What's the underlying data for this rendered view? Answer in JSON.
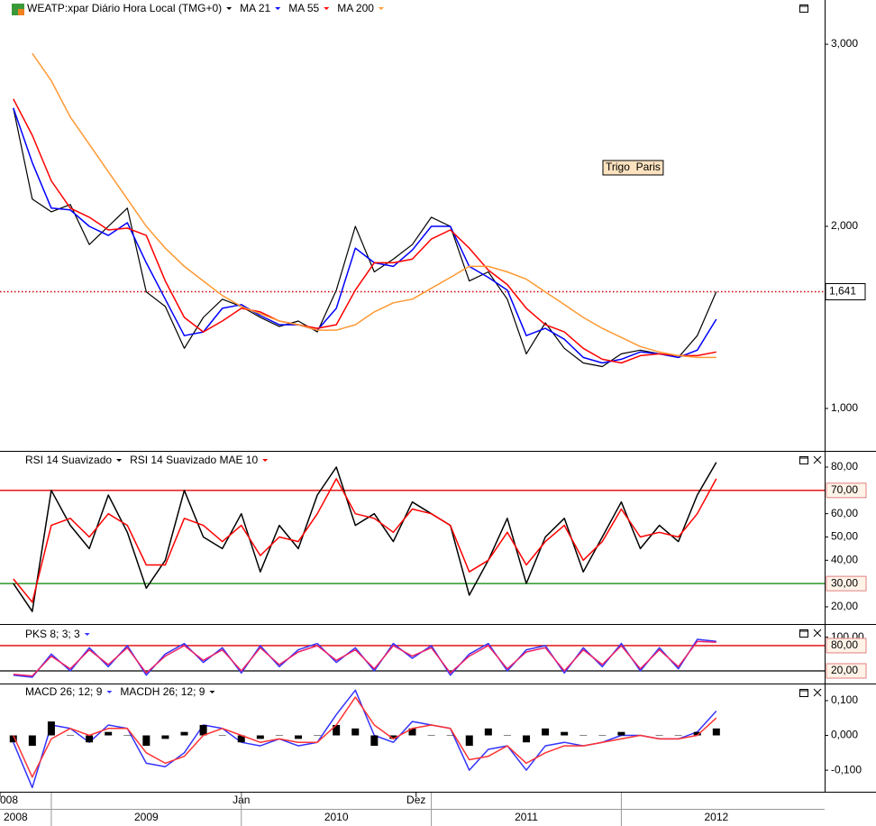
{
  "chart_data": [
    {
      "type": "line",
      "x": [
        2008.8,
        2008.9,
        2009.0,
        2009.1,
        2009.2,
        2009.3,
        2009.4,
        2009.5,
        2009.6,
        2009.7,
        2009.8,
        2009.9,
        2010.0,
        2010.1,
        2010.2,
        2010.3,
        2010.4,
        2010.5,
        2010.6,
        2010.7,
        2010.8,
        2010.9,
        2011.0,
        2011.1,
        2011.2,
        2011.3,
        2011.4,
        2011.5,
        2011.6,
        2011.7,
        2011.8,
        2011.9,
        2012.0,
        2012.1,
        2012.2,
        2012.3,
        2012.4,
        2012.5
      ],
      "xlim": [
        2008.73,
        2013.07
      ],
      "ylim": [
        767,
        3243
      ],
      "yticks": [
        {
          "value": 1000,
          "label": "1,000"
        },
        {
          "value": 2000,
          "label": "2,000"
        },
        {
          "value": 3000,
          "label": "3,000"
        }
      ],
      "series": [
        {
          "name": "WEATP:xpar Diário Hora Local (TMG+0)",
          "color": "#000000",
          "values": [
            2650,
            2150,
            2080,
            2120,
            1900,
            2000,
            2100,
            1640,
            1560,
            1330,
            1500,
            1600,
            1560,
            1500,
            1450,
            1480,
            1420,
            1650,
            2000,
            1750,
            1820,
            1900,
            2050,
            2000,
            1700,
            1750,
            1600,
            1300,
            1470,
            1330,
            1250,
            1230,
            1300,
            1320,
            1300,
            1280,
            1400,
            1641
          ]
        },
        {
          "name": "MA 21",
          "color": "#0000ff",
          "values": [
            2650,
            2350,
            2100,
            2090,
            2000,
            1950,
            2020,
            1800,
            1600,
            1400,
            1420,
            1550,
            1570,
            1510,
            1460,
            1460,
            1430,
            1550,
            1880,
            1800,
            1780,
            1870,
            2000,
            2000,
            1780,
            1720,
            1650,
            1400,
            1440,
            1380,
            1280,
            1250,
            1270,
            1310,
            1300,
            1280,
            1320,
            1490
          ]
        },
        {
          "name": "MA 55",
          "color": "#ff0000",
          "values": [
            2700,
            2500,
            2250,
            2100,
            2050,
            1980,
            1990,
            1950,
            1700,
            1500,
            1420,
            1480,
            1550,
            1530,
            1480,
            1460,
            1440,
            1460,
            1650,
            1800,
            1800,
            1820,
            1930,
            1980,
            1880,
            1760,
            1680,
            1550,
            1460,
            1420,
            1330,
            1270,
            1250,
            1290,
            1300,
            1290,
            1290,
            1310
          ]
        },
        {
          "name": "MA 200",
          "color": "#ff9933",
          "values": [
            null,
            2950,
            2800,
            2600,
            2450,
            2300,
            2150,
            2000,
            1880,
            1780,
            1700,
            1620,
            1560,
            1520,
            1480,
            1460,
            1430,
            1430,
            1460,
            1530,
            1580,
            1600,
            1660,
            1720,
            1780,
            1780,
            1750,
            1710,
            1640,
            1570,
            1500,
            1440,
            1390,
            1340,
            1310,
            1290,
            1280,
            1280
          ]
        }
      ],
      "annotation": "Trigo  Paris",
      "last_price": {
        "value": 1641,
        "label": "1,641"
      }
    },
    {
      "type": "line",
      "ylim": [
        13.4,
        86.2
      ],
      "yticks": [
        {
          "value": 80,
          "label": "80,00"
        },
        {
          "value": 60,
          "label": "60,00"
        },
        {
          "value": 50,
          "label": "50,00"
        },
        {
          "value": 40,
          "label": "40,00"
        },
        {
          "value": 20,
          "label": "20,00"
        }
      ],
      "hlines": [
        {
          "value": 70,
          "label": "70,00",
          "color": "#e00000"
        },
        {
          "value": 30,
          "label": "30,00",
          "color": "#008000"
        }
      ],
      "series": [
        {
          "name": "RSI 14 Suavizado",
          "color": "#000000",
          "values": [
            30,
            18,
            70,
            55,
            45,
            68,
            52,
            28,
            40,
            70,
            50,
            45,
            60,
            35,
            55,
            45,
            68,
            80,
            55,
            60,
            48,
            65,
            60,
            55,
            25,
            40,
            58,
            30,
            50,
            58,
            35,
            50,
            65,
            45,
            55,
            48,
            68,
            82
          ]
        },
        {
          "name": "RSI 14 Suavizado MAE 10",
          "color": "#ff0000",
          "values": [
            32,
            22,
            55,
            58,
            50,
            60,
            55,
            38,
            38,
            58,
            55,
            48,
            55,
            42,
            50,
            48,
            60,
            75,
            60,
            58,
            52,
            62,
            60,
            55,
            35,
            40,
            52,
            38,
            48,
            55,
            40,
            48,
            62,
            50,
            52,
            50,
            60,
            75
          ]
        }
      ]
    },
    {
      "type": "line",
      "ylim": [
        -5.7,
        127
      ],
      "yticks": [
        {
          "value": 100,
          "label": "100,00"
        }
      ],
      "hlines": [
        {
          "value": 80,
          "label": "80,00",
          "color": "#e00000"
        },
        {
          "value": 20,
          "label": "20,00",
          "color": "#000000"
        }
      ],
      "series": [
        {
          "name": "PKS 8; 3; 3",
          "color": "#3333ff",
          "values": [
            10,
            5,
            60,
            20,
            75,
            30,
            80,
            10,
            60,
            85,
            40,
            75,
            15,
            80,
            30,
            70,
            85,
            40,
            75,
            20,
            85,
            50,
            80,
            10,
            60,
            85,
            20,
            70,
            80,
            15,
            75,
            30,
            85,
            20,
            75,
            25,
            95,
            90
          ]
        },
        {
          "color": "#ee2266",
          "values": [
            12,
            8,
            55,
            25,
            70,
            35,
            75,
            15,
            55,
            80,
            45,
            70,
            20,
            75,
            35,
            65,
            80,
            45,
            70,
            25,
            80,
            55,
            75,
            15,
            55,
            80,
            25,
            65,
            75,
            20,
            70,
            35,
            80,
            25,
            70,
            30,
            90,
            88
          ]
        }
      ]
    },
    {
      "type": "line",
      "ylim": [
        -0.162,
        0.144
      ],
      "yticks": [
        {
          "value": 0.1,
          "label": "0,100"
        },
        {
          "value": 0,
          "label": "0,000"
        },
        {
          "value": -0.1,
          "label": "-0,100"
        }
      ],
      "series": [
        {
          "name": "MACD 26; 12; 9",
          "color": "#3333ff",
          "values": [
            -0.02,
            -0.15,
            0.03,
            0.02,
            -0.02,
            0.03,
            0.02,
            -0.08,
            -0.09,
            -0.05,
            0.03,
            0.02,
            -0.02,
            -0.03,
            -0.01,
            -0.03,
            -0.02,
            0.06,
            0.13,
            0.0,
            -0.02,
            0.04,
            0.03,
            0.02,
            -0.1,
            -0.04,
            -0.03,
            -0.1,
            -0.03,
            -0.02,
            -0.03,
            -0.02,
            0.0,
            0.0,
            -0.01,
            -0.01,
            0.01,
            0.07
          ]
        },
        {
          "name": "MACDH 26; 12; 9",
          "color": "#000000",
          "type": "bar",
          "values": [
            -0.02,
            -0.03,
            0.04,
            0.0,
            -0.02,
            0.01,
            0.0,
            -0.03,
            -0.01,
            0.01,
            0.03,
            0.0,
            -0.02,
            -0.01,
            0.0,
            -0.01,
            0.0,
            0.03,
            0.02,
            -0.03,
            -0.01,
            0.02,
            0.0,
            0.0,
            -0.03,
            0.02,
            0.0,
            -0.02,
            0.02,
            0.01,
            0.0,
            0.0,
            0.01,
            0.0,
            0.0,
            0.0,
            0.01,
            0.02
          ]
        },
        {
          "color": "#ff3333",
          "values": [
            0.0,
            -0.12,
            -0.01,
            0.02,
            0.0,
            0.02,
            0.02,
            -0.05,
            -0.08,
            -0.06,
            0.0,
            0.02,
            0.0,
            -0.02,
            -0.01,
            -0.02,
            -0.02,
            0.03,
            0.11,
            0.03,
            -0.01,
            0.02,
            0.03,
            0.02,
            -0.07,
            -0.06,
            -0.03,
            -0.08,
            -0.05,
            -0.03,
            -0.03,
            -0.02,
            -0.01,
            0.0,
            -0.01,
            -0.01,
            0.0,
            0.05
          ]
        }
      ]
    }
  ],
  "time_axis": {
    "months": [
      {
        "value": 2008.73,
        "label": "008"
      },
      {
        "value": 2010.0,
        "label": "Jan"
      },
      {
        "value": 2010.92,
        "label": "Dez"
      }
    ],
    "years": [
      2008,
      2009,
      2010,
      2011,
      2012
    ]
  }
}
